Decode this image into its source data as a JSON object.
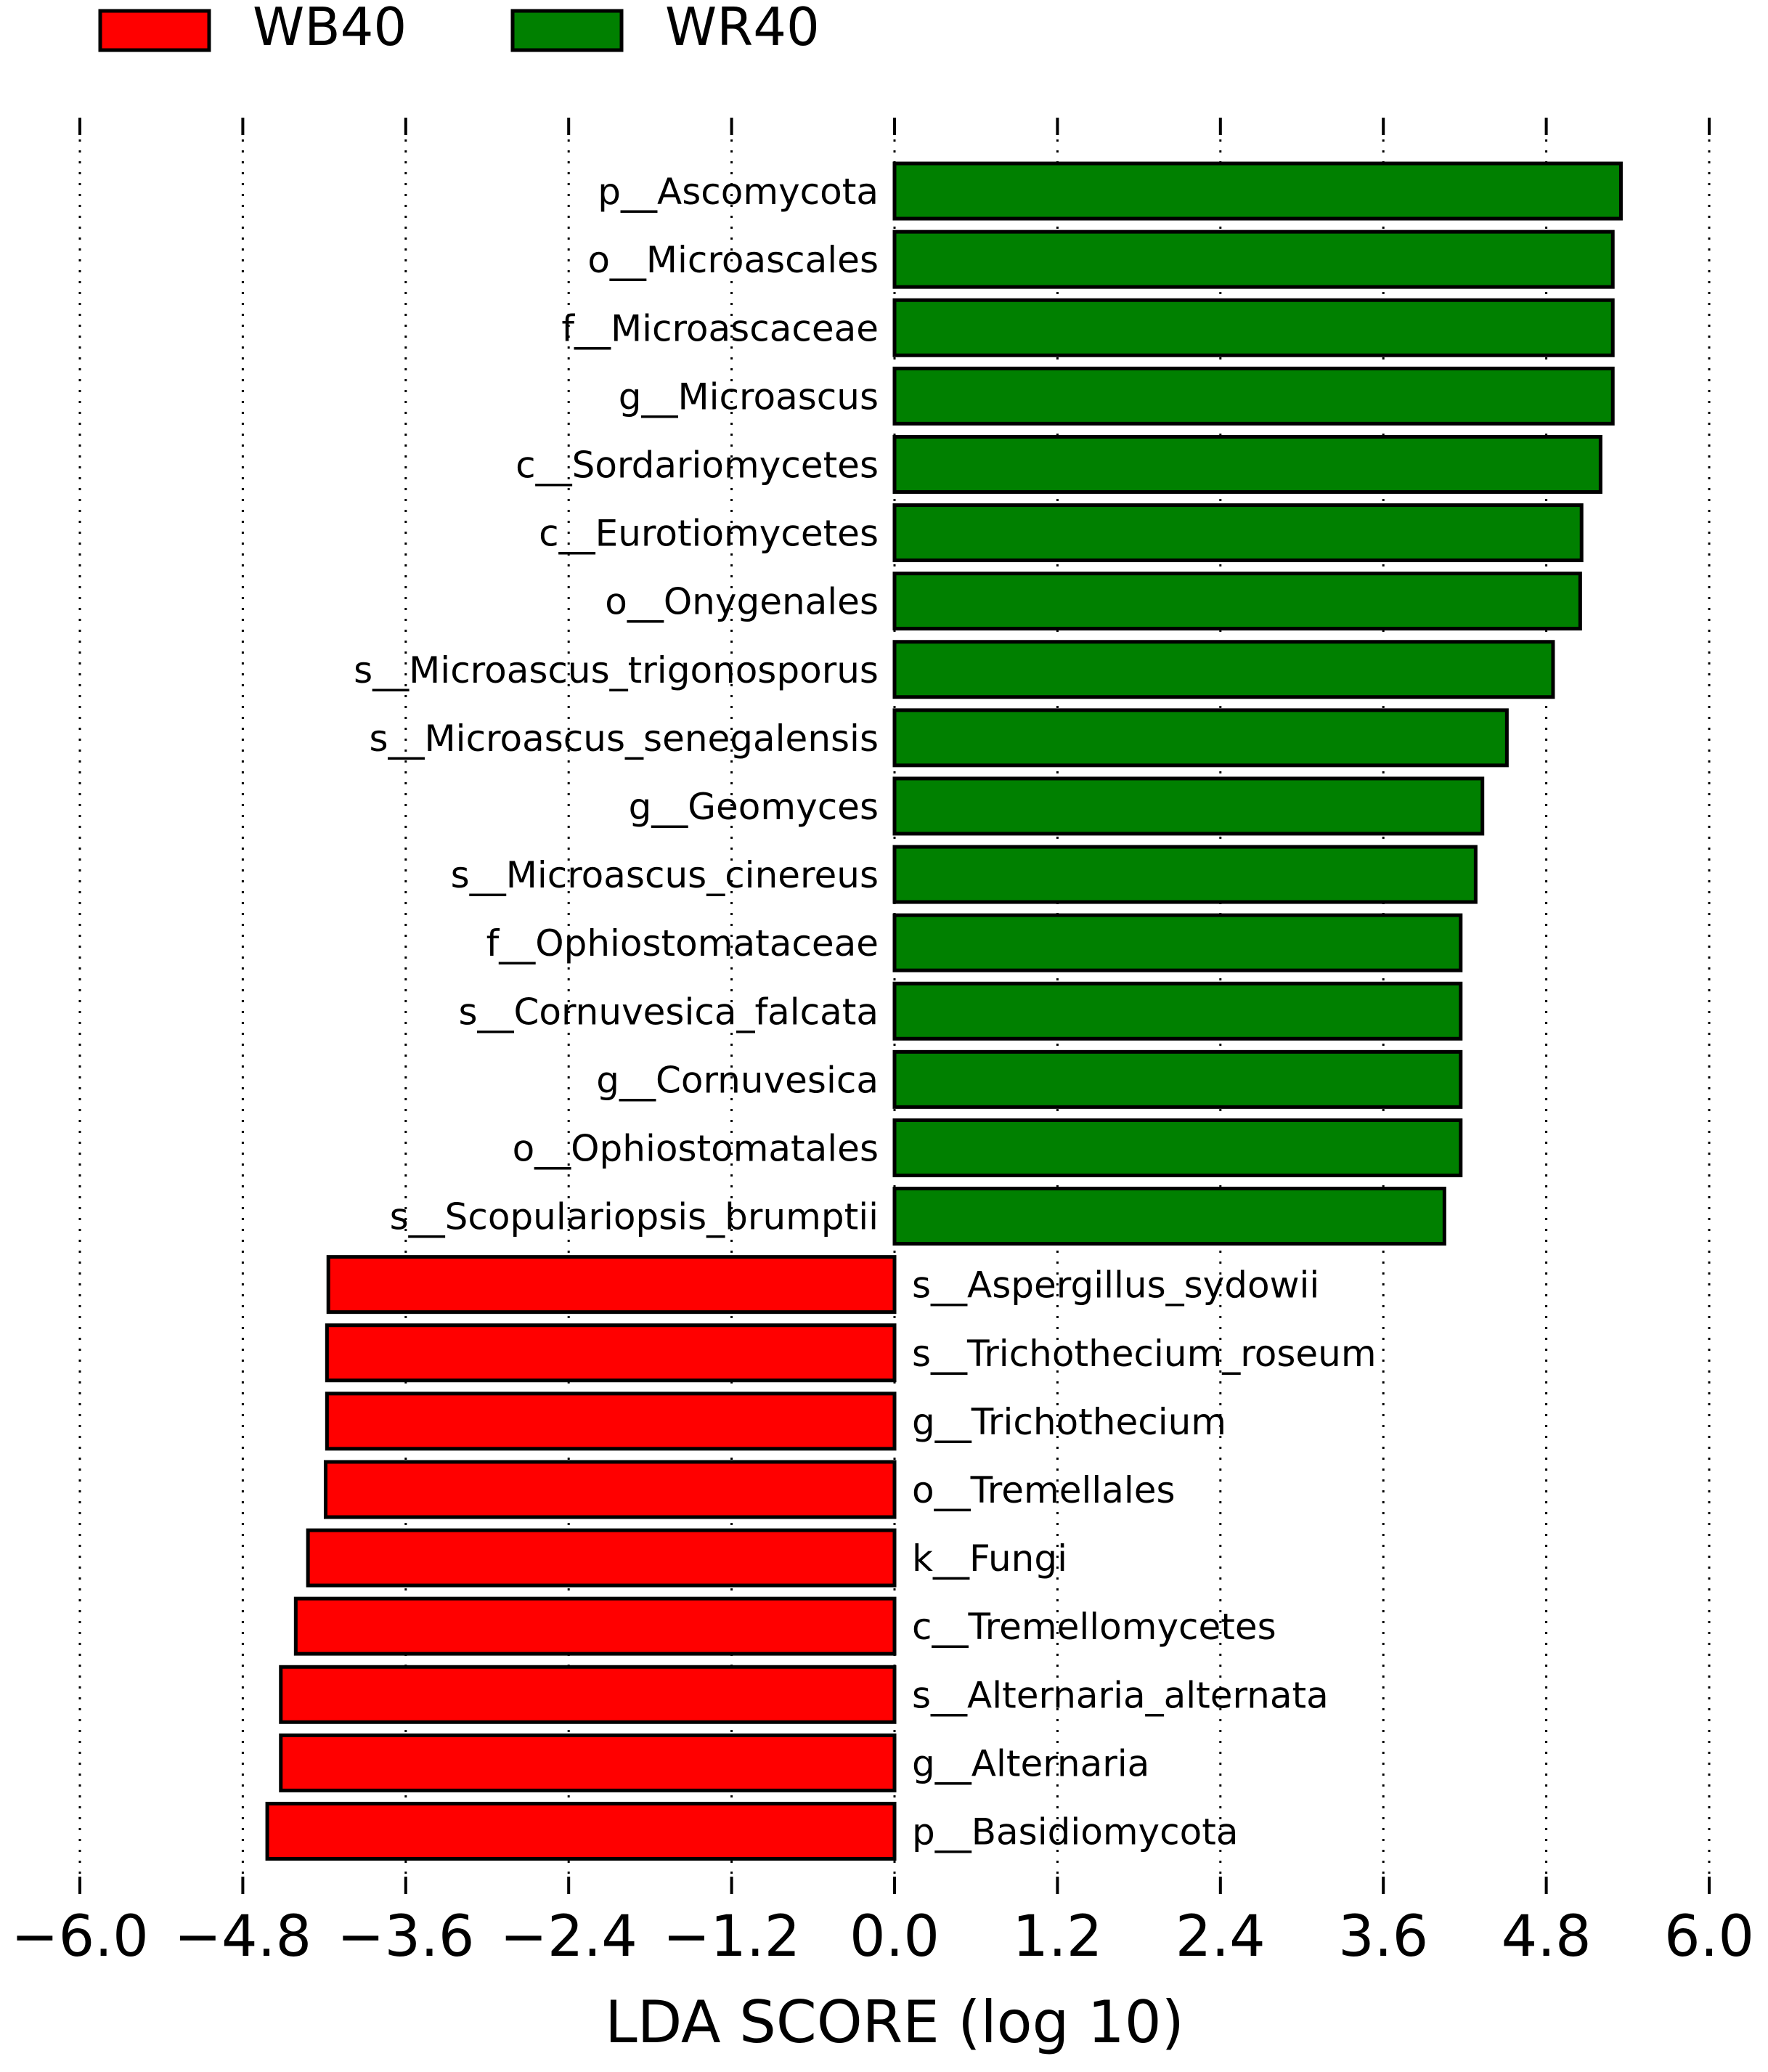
{
  "chart_data": {
    "type": "bar",
    "orientation": "horizontal",
    "xlabel": "LDA SCORE (log 10)",
    "xlim": [
      -6.0,
      6.0
    ],
    "xticks": [
      -6.0,
      -4.8,
      -3.6,
      -2.4,
      -1.2,
      0.0,
      1.2,
      2.4,
      3.6,
      4.8,
      6.0
    ],
    "xtick_labels": [
      "−6.0",
      "−4.8",
      "−3.6",
      "−2.4",
      "−1.2",
      "0.0",
      "1.2",
      "2.4",
      "3.6",
      "4.8",
      "6.0"
    ],
    "grid": "vertical dotted",
    "legend": [
      {
        "name": "WB40",
        "color": "#ff0000"
      },
      {
        "name": "WR40",
        "color": "#008000"
      }
    ],
    "legend_position": "top-left",
    "series": [
      {
        "name": "WR40",
        "color": "#008000",
        "sign": 1
      },
      {
        "name": "WB40",
        "color": "#ff0000",
        "sign": -1
      }
    ],
    "bars": [
      {
        "label": "p__Ascomycota",
        "group": "WR40",
        "value": 5.35
      },
      {
        "label": "o__Microascales",
        "group": "WR40",
        "value": 5.29
      },
      {
        "label": "f__Microascaceae",
        "group": "WR40",
        "value": 5.29
      },
      {
        "label": "g__Microascus",
        "group": "WR40",
        "value": 5.29
      },
      {
        "label": "c__Sordariomycetes",
        "group": "WR40",
        "value": 5.2
      },
      {
        "label": "c__Eurotiomycetes",
        "group": "WR40",
        "value": 5.06
      },
      {
        "label": "o__Onygenales",
        "group": "WR40",
        "value": 5.05
      },
      {
        "label": "s__Microascus_trigonosporus",
        "group": "WR40",
        "value": 4.85
      },
      {
        "label": "s__Microascus_senegalensis",
        "group": "WR40",
        "value": 4.51
      },
      {
        "label": "g__Geomyces",
        "group": "WR40",
        "value": 4.33
      },
      {
        "label": "s__Microascus_cinereus",
        "group": "WR40",
        "value": 4.28
      },
      {
        "label": "f__Ophiostomataceae",
        "group": "WR40",
        "value": 4.17
      },
      {
        "label": "s__Cornuvesica_falcata",
        "group": "WR40",
        "value": 4.17
      },
      {
        "label": "g__Cornuvesica",
        "group": "WR40",
        "value": 4.17
      },
      {
        "label": "o__Ophiostomatales",
        "group": "WR40",
        "value": 4.17
      },
      {
        "label": "s__Scopulariopsis_brumptii",
        "group": "WR40",
        "value": 4.05
      },
      {
        "label": "s__Aspergillus_sydowii",
        "group": "WB40",
        "value": -4.17
      },
      {
        "label": "s__Trichothecium_roseum",
        "group": "WB40",
        "value": -4.18
      },
      {
        "label": "g__Trichothecium",
        "group": "WB40",
        "value": -4.18
      },
      {
        "label": "o__Tremellales",
        "group": "WB40",
        "value": -4.19
      },
      {
        "label": "k__Fungi",
        "group": "WB40",
        "value": -4.32
      },
      {
        "label": "c__Tremellomycetes",
        "group": "WB40",
        "value": -4.41
      },
      {
        "label": "s__Alternaria_alternata",
        "group": "WB40",
        "value": -4.52
      },
      {
        "label": "g__Alternaria",
        "group": "WB40",
        "value": -4.52
      },
      {
        "label": "p__Basidiomycota",
        "group": "WB40",
        "value": -4.62
      }
    ]
  }
}
